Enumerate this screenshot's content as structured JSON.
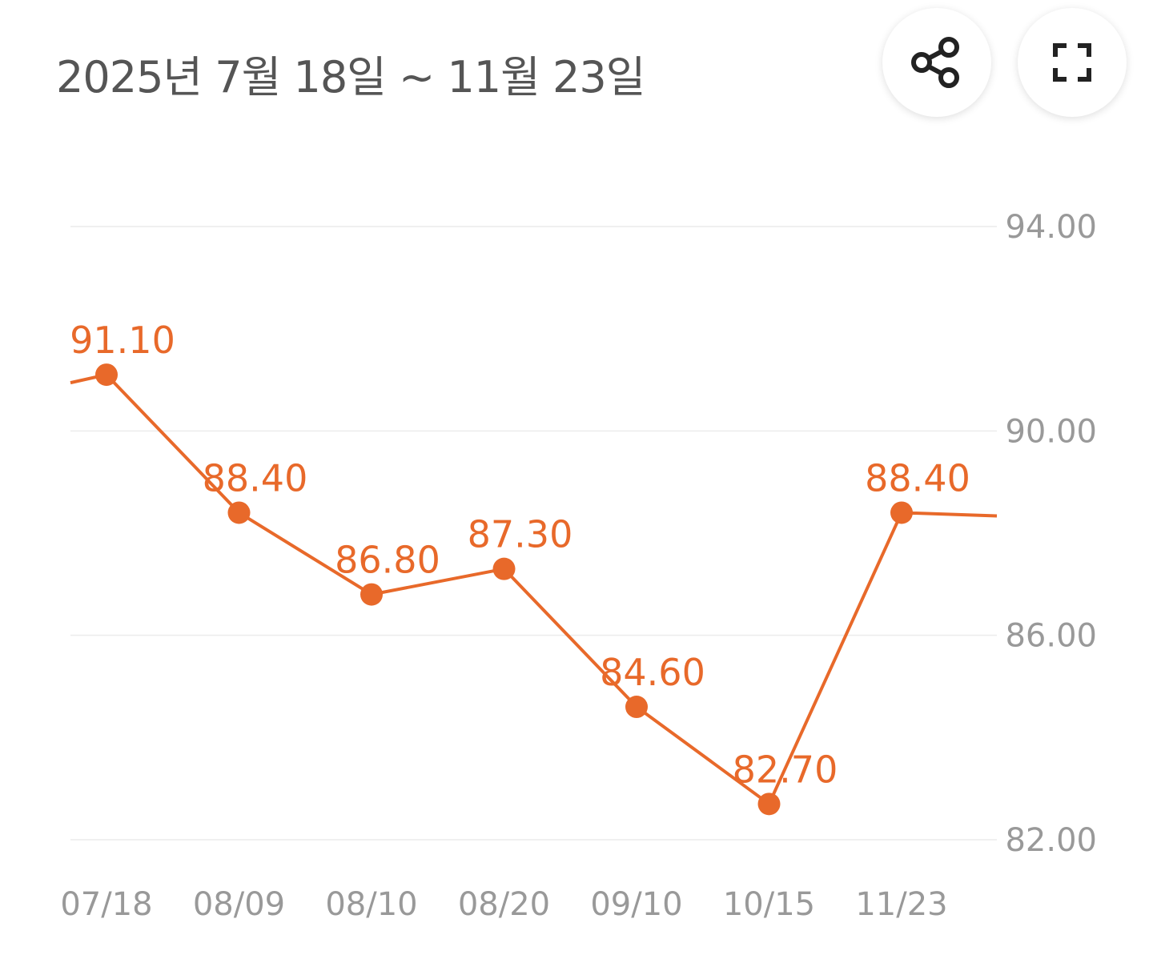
{
  "header": {
    "period_title": "2025년 7월 18일 ~ 11월 23일",
    "share_icon": "share-icon",
    "expand_icon": "fullscreen-icon"
  },
  "colors": {
    "series": "#e8692a",
    "grid": "#ececec",
    "axis_text": "#999999",
    "title_text": "#555555"
  },
  "chart_data": {
    "type": "line",
    "categories": [
      "07/18",
      "08/09",
      "08/10",
      "08/20",
      "09/10",
      "10/15",
      "11/23"
    ],
    "series": [
      {
        "values": [
          91.1,
          88.4,
          86.8,
          87.3,
          84.6,
          82.7,
          88.4
        ],
        "data_labels": [
          "91.10",
          "88.40",
          "86.80",
          "87.30",
          "84.60",
          "82.70",
          "88.40"
        ]
      }
    ],
    "y_ticks": [
      "94.00",
      "90.00",
      "86.00",
      "82.00"
    ],
    "ylim": [
      82,
      94
    ],
    "y_axis_side": "right",
    "grid": true,
    "line_extends_past_edges": true
  }
}
